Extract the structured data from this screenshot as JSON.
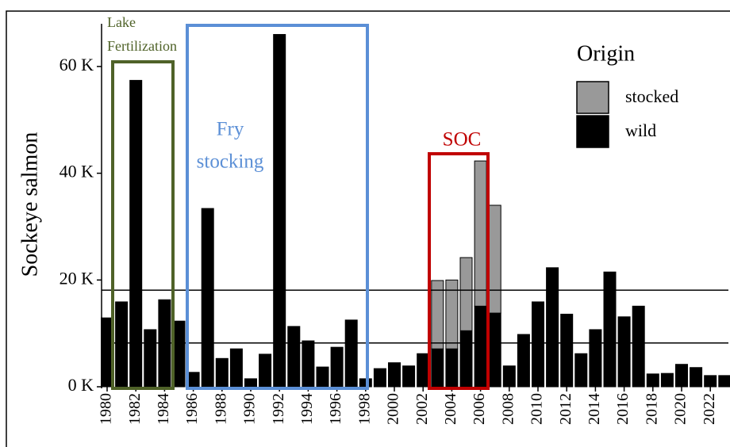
{
  "chart_data": {
    "type": "stacked_bar",
    "y_label": "Sockeye salmon",
    "categories": [
      "1980",
      null,
      "1982",
      null,
      "1984",
      null,
      "1986",
      null,
      "1988",
      null,
      "1990",
      null,
      "1992",
      null,
      "1994",
      null,
      "1996",
      null,
      "1998",
      null,
      "2000",
      null,
      "2002",
      null,
      "2004",
      null,
      "2006",
      null,
      "2008",
      null,
      "2010",
      null,
      "2012",
      null,
      "2014",
      null,
      "2016",
      null,
      "2018",
      null,
      "2020",
      null,
      "2022",
      null
    ],
    "series": [
      {
        "name": "stocked",
        "color": "#999999",
        "values": [
          null,
          null,
          null,
          null,
          null,
          null,
          null,
          null,
          null,
          null,
          null,
          null,
          null,
          null,
          null,
          null,
          null,
          null,
          null,
          null,
          null,
          null,
          null,
          12.8,
          12.9,
          13.7,
          27.2,
          20.2,
          null,
          null,
          null,
          null,
          null,
          null,
          null,
          null,
          null,
          null,
          null,
          null,
          null,
          null,
          null,
          null
        ]
      },
      {
        "name": "wild",
        "color": "#000000",
        "values": [
          12.9,
          15.9,
          57.4,
          10.7,
          16.3,
          12.3,
          2.7,
          33.4,
          5.3,
          7.1,
          1.5,
          6.1,
          66.0,
          11.3,
          8.6,
          3.7,
          7.4,
          12.5,
          1.5,
          3.4,
          4.5,
          3.9,
          6.2,
          7.1,
          7.1,
          10.5,
          15.1,
          13.8,
          3.9,
          9.8,
          15.9,
          22.3,
          13.6,
          6.2,
          10.7,
          21.5,
          13.1,
          15.1,
          2.4,
          2.5,
          4.2,
          3.6,
          2.1,
          2.1
        ]
      }
    ],
    "hlines": [
      18.1,
      8.2
    ],
    "ylim": [
      0,
      68
    ],
    "yticks": [
      {
        "value": 0,
        "label": "0 K"
      },
      {
        "value": 20,
        "label": "20 K"
      },
      {
        "value": 40,
        "label": "40 K"
      },
      {
        "value": 60,
        "label": "60 K"
      }
    ],
    "legend_title": "Origin",
    "legend_position": "top-right",
    "annotations": [
      {
        "lines": [
          "Lake",
          "Fertilization"
        ],
        "color": "#4f6228"
      },
      {
        "lines": [
          "Fry",
          "stocking"
        ],
        "color": "#5b8fd6"
      },
      {
        "lines": [
          "SOC"
        ],
        "color": "#c00000"
      }
    ]
  }
}
